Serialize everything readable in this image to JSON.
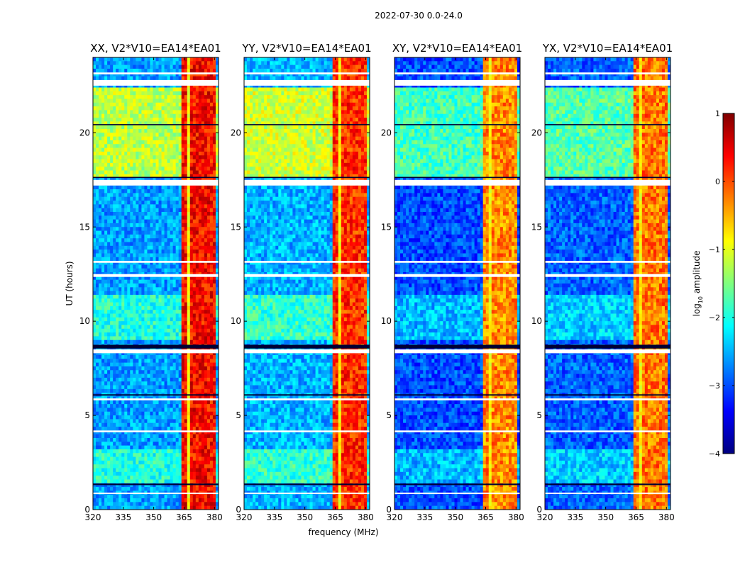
{
  "figure": {
    "suptitle": "2022-07-30 0.0-24.0",
    "xlabel": "frequency (MHz)",
    "ylabel": "UT (hours)"
  },
  "colorbar": {
    "label_main": "log",
    "label_sub": "10",
    "label_tail": " amplitude",
    "range": [
      -4,
      1
    ],
    "ticks": [
      1,
      0,
      -1,
      -2,
      -3,
      -4
    ],
    "tick_labels": [
      "1",
      "0",
      "−1",
      "−2",
      "−3",
      "−4"
    ],
    "colormap": "jet",
    "stops": [
      "#00007f",
      "#0000ff",
      "#007fff",
      "#00ffff",
      "#7fff7f",
      "#ffff00",
      "#ff7f00",
      "#ff0000",
      "#7f0000"
    ]
  },
  "chart_data": {
    "type": "heatmap",
    "x_range": [
      320,
      382
    ],
    "y_range": [
      0,
      24
    ],
    "x_ticks": [
      320,
      335,
      350,
      365,
      380
    ],
    "x_tick_labels": [
      "320",
      "335",
      "350",
      "365",
      "380"
    ],
    "y_ticks": [
      0,
      5,
      10,
      15,
      20
    ],
    "y_tick_labels": [
      "0",
      "5",
      "10",
      "15",
      "20"
    ],
    "value_scale": "log10 amplitude",
    "panels": [
      {
        "title": "XX, V2*V10=EA14*EA01",
        "rfi_level_rfi": 0.35,
        "rfi_level_day": -1.2,
        "rfi_level_night": -2.6
      },
      {
        "title": "YY, V2*V10=EA14*EA01",
        "rfi_level_rfi": 0.15,
        "rfi_level_day": -1.1,
        "rfi_level_night": -2.5
      },
      {
        "title": "XY, V2*V10=EA14*EA01",
        "rfi_level_rfi": -0.3,
        "rfi_level_day": -1.8,
        "rfi_level_night": -3.0
      },
      {
        "title": "YX, V2*V10=EA14*EA01",
        "rfi_level_rfi": -0.2,
        "rfi_level_day": -1.7,
        "rfi_level_night": -2.9
      }
    ],
    "rfi_band_mhz": [
      363,
      381
    ],
    "flagged_hours": [
      [
        0.85,
        0.9
      ],
      [
        8.3,
        8.5
      ],
      [
        12.35,
        12.5
      ],
      [
        13.1,
        13.2
      ],
      [
        17.2,
        17.5
      ],
      [
        22.5,
        22.8
      ],
      [
        23.1,
        23.2
      ],
      [
        5.8,
        5.9
      ],
      [
        4.1,
        4.2
      ]
    ],
    "dark_rows_hours": [
      [
        8.55,
        8.75
      ],
      [
        1.3,
        1.38
      ],
      [
        6.05,
        6.12
      ],
      [
        20.4,
        20.46
      ],
      [
        17.6,
        17.66
      ]
    ]
  }
}
